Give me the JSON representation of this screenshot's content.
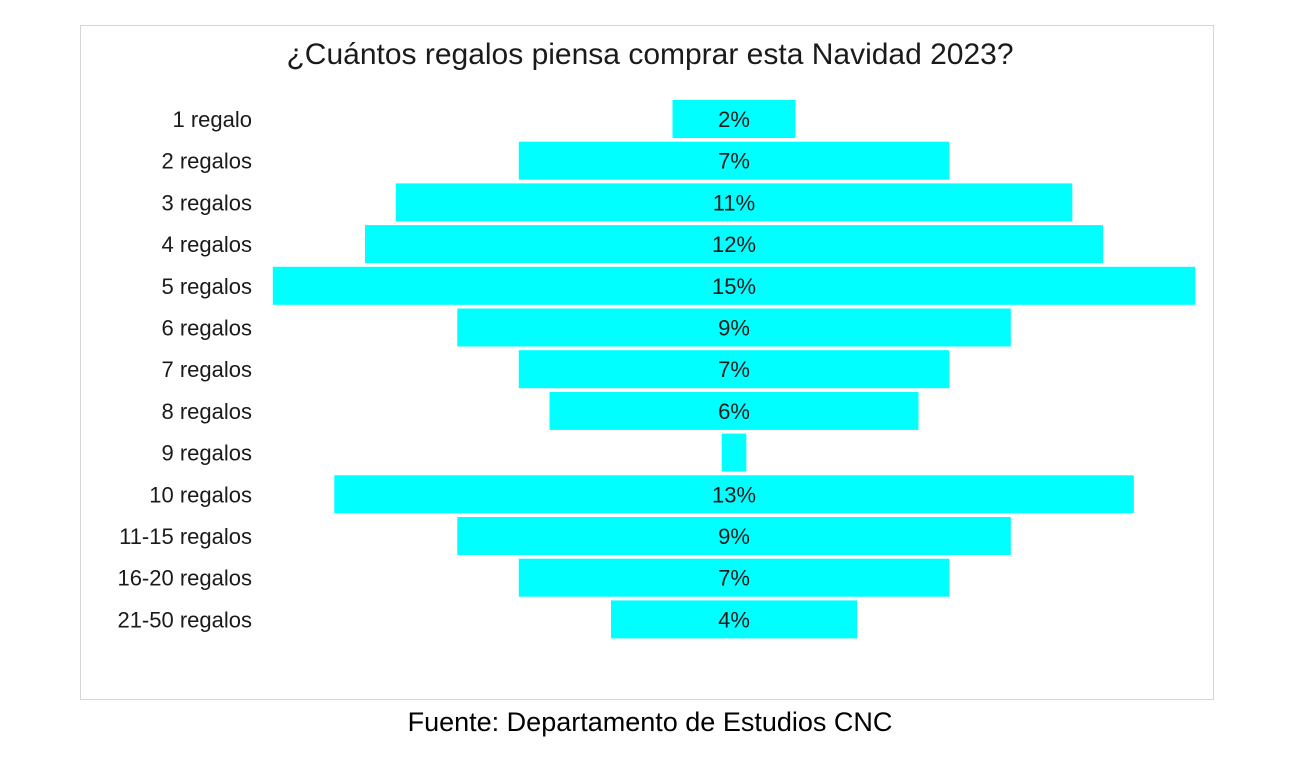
{
  "chart_data": {
    "type": "bar",
    "orientation": "horizontal",
    "layout": "centered",
    "title": "¿Cuántos regalos piensa comprar esta Navidad 2023?",
    "categories": [
      "1 regalo",
      "2 regalos",
      "3 regalos",
      "4 regalos",
      "5 regalos",
      "6 regalos",
      "7 regalos",
      "8 regalos",
      "9 regalos",
      "10 regalos",
      "11-15 regalos",
      "16-20 regalos",
      "21-50 regalos"
    ],
    "values": [
      2,
      7,
      11,
      12,
      15,
      9,
      7,
      6,
      0.4,
      13,
      9,
      7,
      4
    ],
    "data_labels": [
      "2%",
      "7%",
      "11%",
      "12%",
      "15%",
      "9%",
      "7%",
      "6%",
      "",
      "13%",
      "9%",
      "7%",
      "4%"
    ],
    "unit": "%",
    "bar_color": "#00FFFF",
    "grid": false,
    "legend": "none"
  },
  "footer": {
    "source": "Fuente: Departamento de Estudios CNC"
  }
}
